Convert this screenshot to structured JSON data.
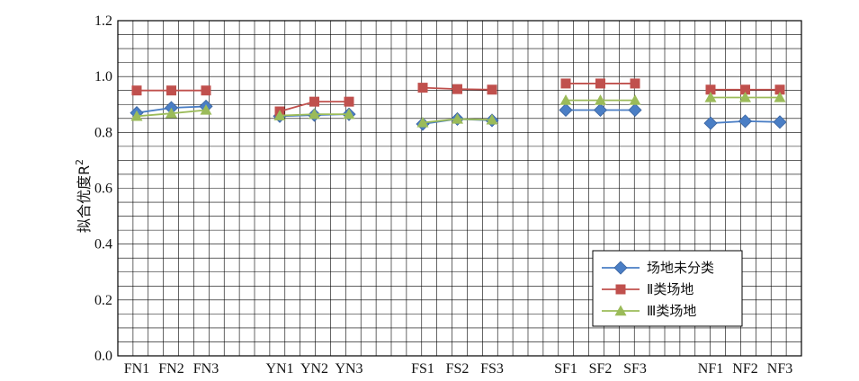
{
  "chart_data": {
    "type": "line",
    "title": "",
    "xlabel": "",
    "ylabel": "拟合优度R",
    "ylabel_sup": "2",
    "ylim": [
      0.0,
      1.2
    ],
    "y_ticks": [
      "0.0",
      "0.2",
      "0.4",
      "0.6",
      "0.8",
      "1.0",
      "1.2"
    ],
    "grid": true,
    "legend_position": "bottom-right",
    "groups": [
      {
        "categories": [
          "FN1",
          "FN2",
          "FN3"
        ]
      },
      {
        "categories": [
          "YN1",
          "YN2",
          "YN3"
        ]
      },
      {
        "categories": [
          "FS1",
          "FS2",
          "FS3"
        ]
      },
      {
        "categories": [
          "SF1",
          "SF2",
          "SF3"
        ]
      },
      {
        "categories": [
          "NF1",
          "NF2",
          "NF3"
        ]
      }
    ],
    "series": [
      {
        "name": "场地未分类",
        "marker": "diamond",
        "color": "#4a7ec5",
        "values": [
          [
            0.87,
            0.888,
            0.893
          ],
          [
            0.858,
            0.862,
            0.865
          ],
          [
            0.83,
            0.848,
            0.843
          ],
          [
            0.88,
            0.88,
            0.88
          ],
          [
            0.833,
            0.84,
            0.837
          ]
        ]
      },
      {
        "name": "Ⅱ类场地",
        "marker": "square",
        "color": "#c0504d",
        "values": [
          [
            0.95,
            0.95,
            0.95
          ],
          [
            0.875,
            0.91,
            0.91
          ],
          [
            0.96,
            0.955,
            0.953
          ],
          [
            0.975,
            0.975,
            0.975
          ],
          [
            0.953,
            0.953,
            0.953
          ]
        ]
      },
      {
        "name": "Ⅲ类场地",
        "marker": "triangle",
        "color": "#9bbb59",
        "values": [
          [
            0.858,
            0.868,
            0.88
          ],
          [
            0.86,
            0.865,
            0.865
          ],
          [
            0.835,
            0.848,
            0.845
          ],
          [
            0.915,
            0.915,
            0.915
          ],
          [
            0.925,
            0.925,
            0.925
          ]
        ]
      }
    ]
  }
}
